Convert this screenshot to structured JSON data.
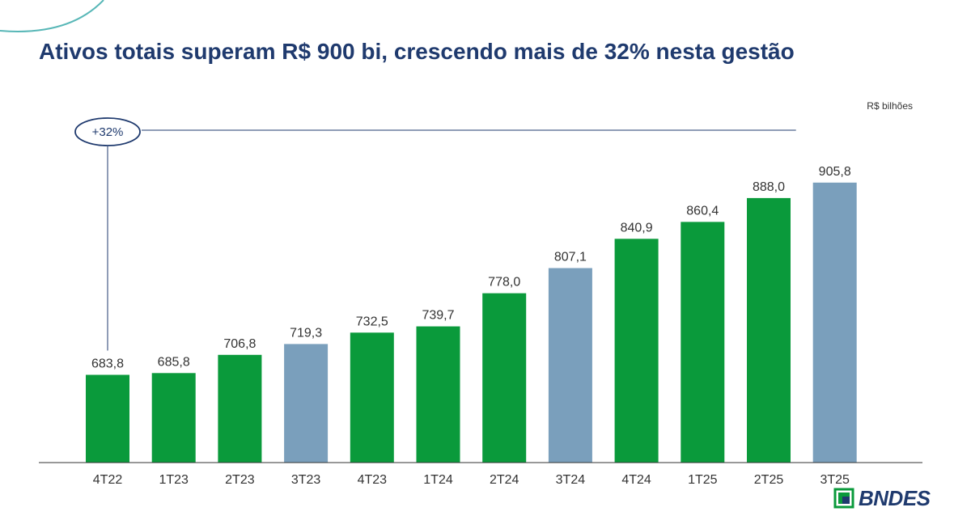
{
  "header": {
    "title": "Ativos totais superam R$ 900 bi, crescendo mais de 32% nesta gestão"
  },
  "chart_data": {
    "type": "bar",
    "unit_label": "R$ bilhões",
    "categories": [
      "4T22",
      "1T23",
      "2T23",
      "3T23",
      "4T23",
      "1T24",
      "2T24",
      "3T24",
      "4T24",
      "1T25",
      "2T25",
      "3T25"
    ],
    "values": [
      683.8,
      685.8,
      706.8,
      719.3,
      732.5,
      739.7,
      778.0,
      807.1,
      840.9,
      860.4,
      888.0,
      905.8
    ],
    "value_labels": [
      "683,8",
      "685,8",
      "706,8",
      "719,3",
      "732,5",
      "739,7",
      "778,0",
      "807,1",
      "840,9",
      "860,4",
      "888,0",
      "905,8"
    ],
    "highlight": [
      false,
      false,
      false,
      true,
      false,
      false,
      false,
      true,
      false,
      false,
      false,
      true
    ],
    "colors": {
      "primary": "#0a9a3b",
      "highlight": "#7a9fbc",
      "accent": "#1f3a6e"
    },
    "annotation": {
      "text": "+32%",
      "from": "4T22",
      "to": "3T25"
    }
  },
  "footer": {
    "logo_text": "BNDES"
  }
}
